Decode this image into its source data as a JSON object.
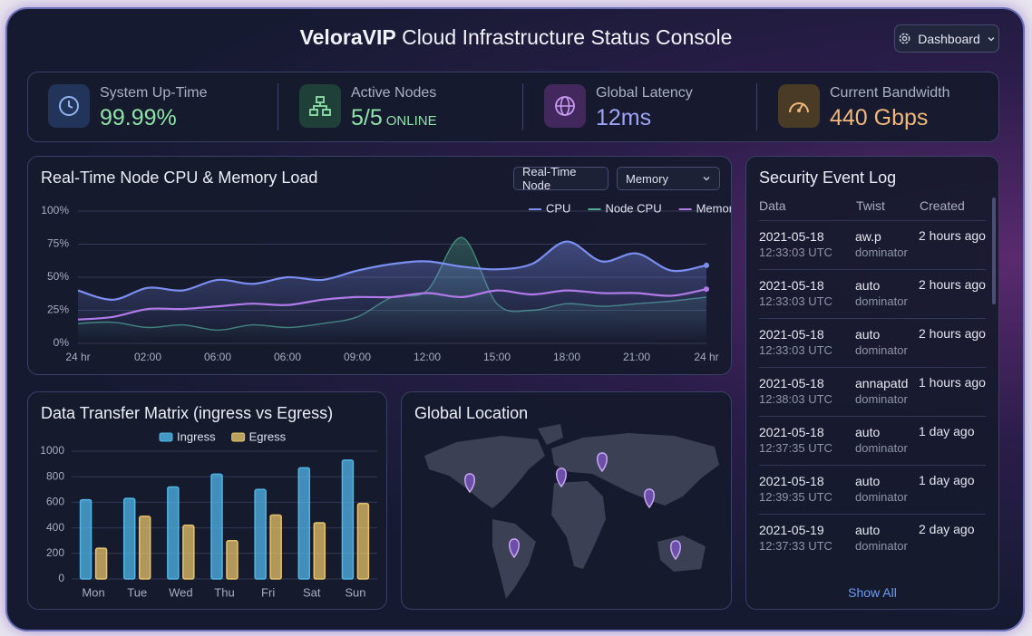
{
  "header": {
    "brand": "VeloraVIP",
    "title": "Cloud Infrastructure Status Console",
    "button": "Dashboard"
  },
  "kpis": [
    {
      "label": "System Up-Time",
      "value": "99.99%"
    },
    {
      "label": "Active Nodes",
      "value": "5/5",
      "suffix": "ONLINE"
    },
    {
      "label": "Global Latency",
      "value": "12ms"
    },
    {
      "label": "Current Bandwidth",
      "value": "440 Gbps"
    }
  ],
  "chart_data": [
    {
      "type": "line",
      "title": "Real-Time Node CPU & Memory Load",
      "controls": [
        "Real-Time Node",
        "Memory"
      ],
      "categories": [
        "24 hr",
        null,
        "02:00",
        null,
        "06:00",
        null,
        "06:00",
        null,
        "09:00",
        null,
        "12:00",
        null,
        "15:00",
        null,
        "18:00",
        null,
        "21:00",
        null,
        "24 hr"
      ],
      "series": [
        {
          "name": "CPU",
          "color": "#7b8ff0",
          "values": [
            40,
            33,
            42,
            40,
            48,
            45,
            50,
            48,
            55,
            60,
            62,
            58,
            56,
            60,
            77,
            62,
            68,
            55,
            59
          ]
        },
        {
          "name": "Node CPU",
          "color": "#4fae94",
          "values": [
            15,
            16,
            12,
            14,
            10,
            14,
            12,
            15,
            20,
            35,
            40,
            80,
            30,
            25,
            30,
            28,
            30,
            32,
            35
          ]
        },
        {
          "name": "Memory",
          "color": "#b07be8",
          "values": [
            18,
            20,
            26,
            26,
            28,
            30,
            29,
            33,
            35,
            35,
            38,
            35,
            40,
            37,
            40,
            38,
            38,
            36,
            41
          ]
        }
      ],
      "ylim": [
        0,
        100
      ],
      "yticks": [
        {
          "value": 0,
          "label": "0%"
        },
        {
          "value": 25,
          "label": "25%"
        },
        {
          "value": 50,
          "label": "50%"
        },
        {
          "value": 75,
          "label": "75%"
        },
        {
          "value": 100,
          "label": "100%"
        }
      ],
      "grid": true
    },
    {
      "type": "bar",
      "title": "Data Transfer Matrix (ingress vs Egress)",
      "categories": [
        "Mon",
        "Tue",
        "Wed",
        "Thu",
        "Fri",
        "Sat",
        "Sun"
      ],
      "series": [
        {
          "name": "Ingress",
          "color": "#4fb6e8",
          "values": [
            620,
            630,
            720,
            820,
            700,
            870,
            930
          ]
        },
        {
          "name": "Egress",
          "color": "#e6c36a",
          "values": [
            240,
            490,
            420,
            300,
            500,
            440,
            590
          ]
        }
      ],
      "ylim": [
        0,
        1000
      ],
      "yticks": [
        0,
        200,
        400,
        600,
        800,
        1000
      ],
      "grid": true
    }
  ],
  "map": {
    "title": "Global Location"
  },
  "security_log": {
    "title": "Security Event Log",
    "columns": [
      "Data",
      "Twist",
      "Created"
    ],
    "rows": [
      {
        "date": "2021-05-18",
        "time": "12:33:03 UTC",
        "twist": "aw.p",
        "group": "dominator",
        "created": "2 hours ago"
      },
      {
        "date": "2021-05-18",
        "time": "12:33:03 UTC",
        "twist": "auto",
        "group": "dominator",
        "created": "2 hours ago"
      },
      {
        "date": "2021-05-18",
        "time": "12:33:03 UTC",
        "twist": "auto",
        "group": "dominator",
        "created": "2 hours ago"
      },
      {
        "date": "2021-05-18",
        "time": "12:38:03 UTC",
        "twist": "annapatd",
        "group": "dominator",
        "created": "1 hours ago"
      },
      {
        "date": "2021-05-18",
        "time": "12:37:35 UTC",
        "twist": "auto",
        "group": "dominator",
        "created": "1 day ago"
      },
      {
        "date": "2021-05-18",
        "time": "12:39:35 UTC",
        "twist": "auto",
        "group": "dominator",
        "created": "1 day ago"
      },
      {
        "date": "2021-05-19",
        "time": "12:37:33 UTC",
        "twist": "auto",
        "group": "dominator",
        "created": "2 day ago"
      }
    ],
    "footer": "Show All"
  }
}
